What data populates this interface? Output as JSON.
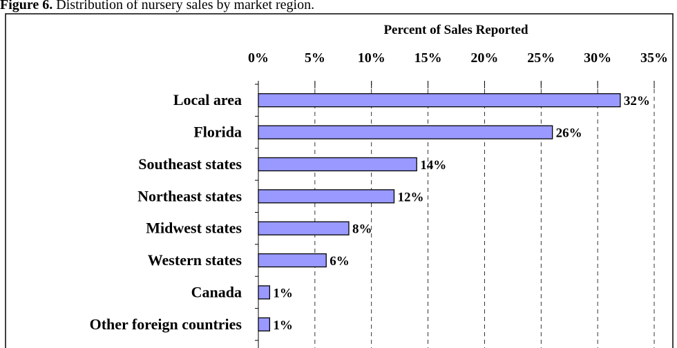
{
  "chart_data": {
    "type": "barh",
    "figure_label": "Figure 6.",
    "title": "Distribution of nursery sales by market region.",
    "xlabel": "Percent of Sales Reported",
    "categories": [
      "Local area",
      "Florida",
      "Southeast states",
      "Northeast states",
      "Midwest states",
      "Western states",
      "Canada",
      "Other foreign countries"
    ],
    "values": [
      32,
      26,
      14,
      12,
      8,
      6,
      1,
      1
    ],
    "value_labels": [
      "32%",
      "26%",
      "14%",
      "12%",
      "8%",
      "6%",
      "1%",
      "1%"
    ],
    "color": "#9999ff",
    "xlim": [
      0,
      35
    ],
    "xticks": [
      {
        "value": 0,
        "label": "0%"
      },
      {
        "value": 5,
        "label": "5%"
      },
      {
        "value": 10,
        "label": "10%"
      },
      {
        "value": 15,
        "label": "15%"
      },
      {
        "value": 20,
        "label": "20%"
      },
      {
        "value": 25,
        "label": "25%"
      },
      {
        "value": 30,
        "label": "30%"
      },
      {
        "value": 35,
        "label": "35%"
      }
    ],
    "grid": true
  }
}
